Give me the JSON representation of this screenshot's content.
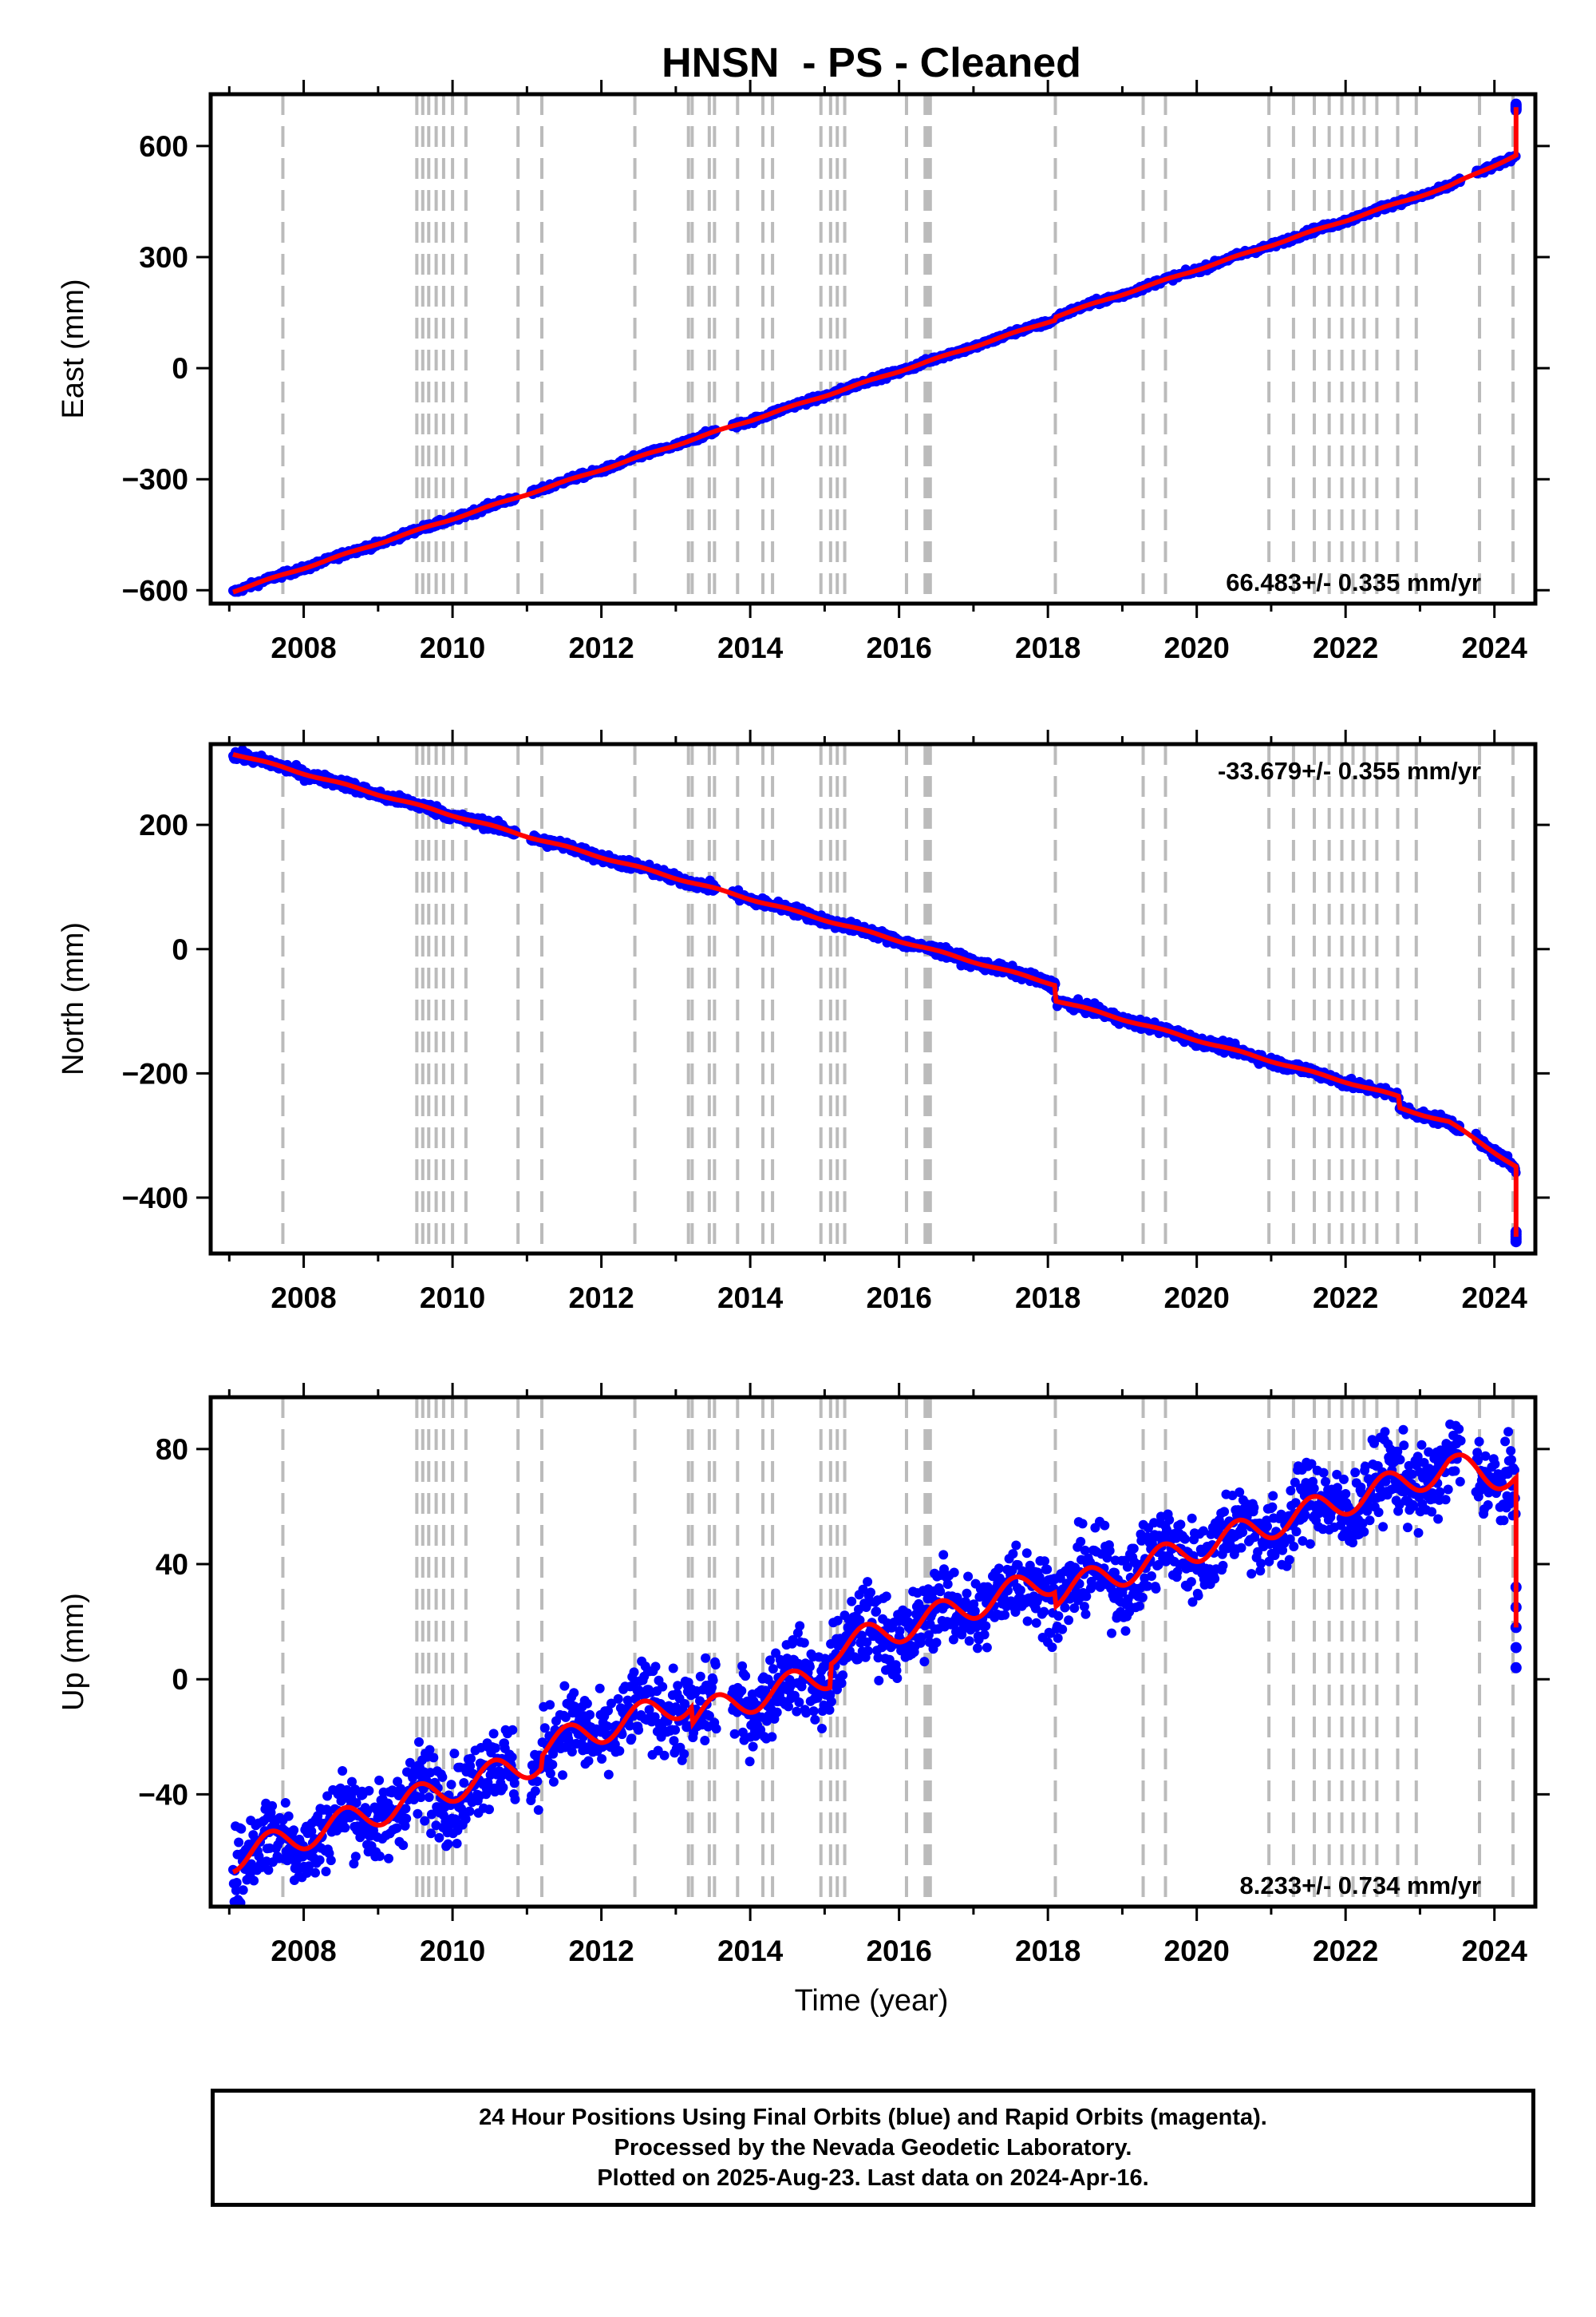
{
  "chart_data": {
    "type": "scatter",
    "title": "HNSN  - PS - Cleaned",
    "xlabel": "Time (year)",
    "xlim": [
      2006.75,
      2024.55
    ],
    "x_ticks": [
      "2008",
      "2010",
      "2012",
      "2014",
      "2016",
      "2018",
      "2020",
      "2022",
      "2024"
    ],
    "event_lines": [
      2007.72,
      2009.52,
      2009.6,
      2009.68,
      2009.78,
      2009.88,
      2010.0,
      2010.18,
      2010.88,
      2011.2,
      2012.45,
      2013.17,
      2013.22,
      2013.45,
      2013.52,
      2013.83,
      2014.17,
      2014.3,
      2014.95,
      2015.08,
      2015.17,
      2015.27,
      2016.1,
      2016.35,
      2016.38,
      2016.42,
      2018.1,
      2019.28,
      2019.58,
      2020.97,
      2021.3,
      2021.58,
      2021.78,
      2021.95,
      2022.1,
      2022.25,
      2022.42,
      2022.7,
      2022.95,
      2023.8,
      2024.25
    ],
    "series_colors": {
      "points": "#0000ff",
      "model": "#ff0000",
      "event_lines": "#bbbbbb"
    },
    "panels": [
      {
        "ylabel": "East (mm)",
        "ylim": [
          -636,
          740
        ],
        "y_ticks": [
          "600",
          "300",
          "0",
          "−300",
          "−600"
        ],
        "y_tick_values": [
          600,
          300,
          0,
          -300,
          -600
        ],
        "rate_label": "66.483+/- 0.335 mm/yr",
        "rate_position": "bottom-right",
        "start": [
          2007.05,
          -603
        ],
        "rate": 66.483,
        "seasonal_amplitude": 2,
        "offsets": [
          [
            2018.1,
            8
          ]
        ],
        "scatter": 4,
        "end_jump": [
          2024.29,
          705
        ],
        "end_value": 575
      },
      {
        "ylabel": "North (mm)",
        "ylim": [
          -490,
          330
        ],
        "y_ticks": [
          "200",
          "0",
          "−200",
          "−400"
        ],
        "y_tick_values": [
          200,
          0,
          -200,
          -400
        ],
        "rate_label": "-33.679+/- 0.355 mm/yr",
        "rate_position": "top-right",
        "start": [
          2007.05,
          315
        ],
        "rate": -33.679,
        "seasonal_amplitude": 1.5,
        "offsets": [
          [
            2018.1,
            -25
          ],
          [
            2022.72,
            -18
          ]
        ],
        "scatter": 4,
        "end_jump": [
          2024.29,
          -463
        ],
        "end_value": -350
      },
      {
        "ylabel": "Up (mm)",
        "ylim": [
          -79,
          98
        ],
        "y_ticks": [
          "80",
          "40",
          "0",
          "−40"
        ],
        "y_tick_values": [
          80,
          40,
          0,
          -40
        ],
        "rate_label": "8.233+/- 0.734 mm/yr",
        "rate_position": "bottom-right",
        "start": [
          2007.05,
          -62
        ],
        "rate": 8.233,
        "seasonal_amplitude": 5,
        "offsets": [
          [
            2011.2,
            4
          ],
          [
            2013.22,
            -6
          ],
          [
            2015.08,
            8
          ],
          [
            2018.1,
            -5
          ]
        ],
        "scatter": 7,
        "end_jump": [
          2024.29,
          18
        ],
        "end_value": 70
      }
    ]
  },
  "footer": {
    "line1": "24 Hour Positions Using Final Orbits (blue) and Rapid Orbits (magenta).",
    "line2": "Processed by the Nevada Geodetic Laboratory.",
    "line3": "Plotted on 2025-Aug-23. Last data on 2024-Apr-16."
  }
}
